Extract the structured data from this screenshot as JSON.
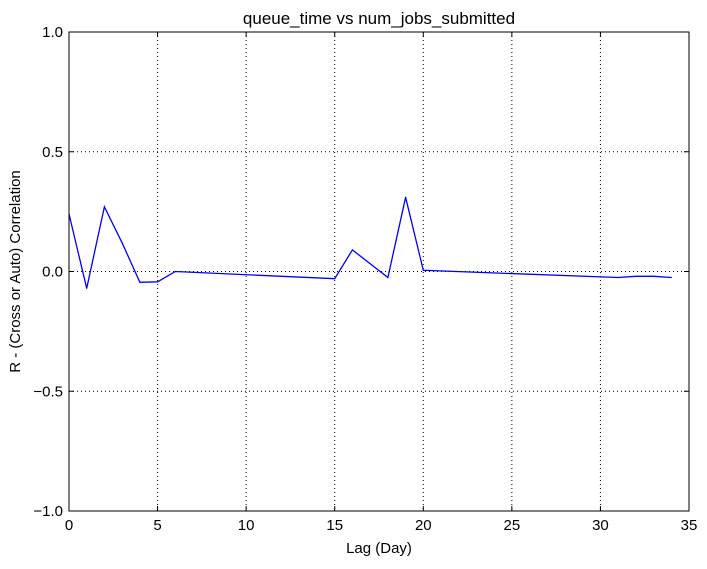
{
  "chart_data": {
    "type": "line",
    "title": "queue_time vs num_jobs_submitted",
    "xlabel": "Lag (Day)",
    "ylabel": "R - (Cross or Auto) Correlation",
    "xlim": [
      0,
      35
    ],
    "ylim": [
      -1.0,
      1.0
    ],
    "x_ticks": [
      0,
      5,
      10,
      15,
      20,
      25,
      30,
      35
    ],
    "x_tick_labels": [
      "0",
      "5",
      "10",
      "15",
      "20",
      "25",
      "30",
      "35"
    ],
    "y_ticks": [
      -1.0,
      -0.5,
      0.0,
      0.5,
      1.0
    ],
    "y_tick_labels": [
      "−1.0",
      "−0.5",
      "0.0",
      "0.5",
      "1.0"
    ],
    "grid": true,
    "series": [
      {
        "color": "#0000ff",
        "x": [
          0,
          1,
          2,
          3,
          4,
          5,
          6,
          15,
          16,
          18,
          19,
          20,
          31,
          32,
          33,
          34
        ],
        "y": [
          0.24,
          -0.07,
          0.27,
          0.12,
          -0.045,
          -0.043,
          0.0,
          -0.03,
          0.09,
          -0.025,
          0.31,
          0.005,
          -0.025,
          -0.02,
          -0.02,
          -0.025
        ]
      }
    ]
  }
}
